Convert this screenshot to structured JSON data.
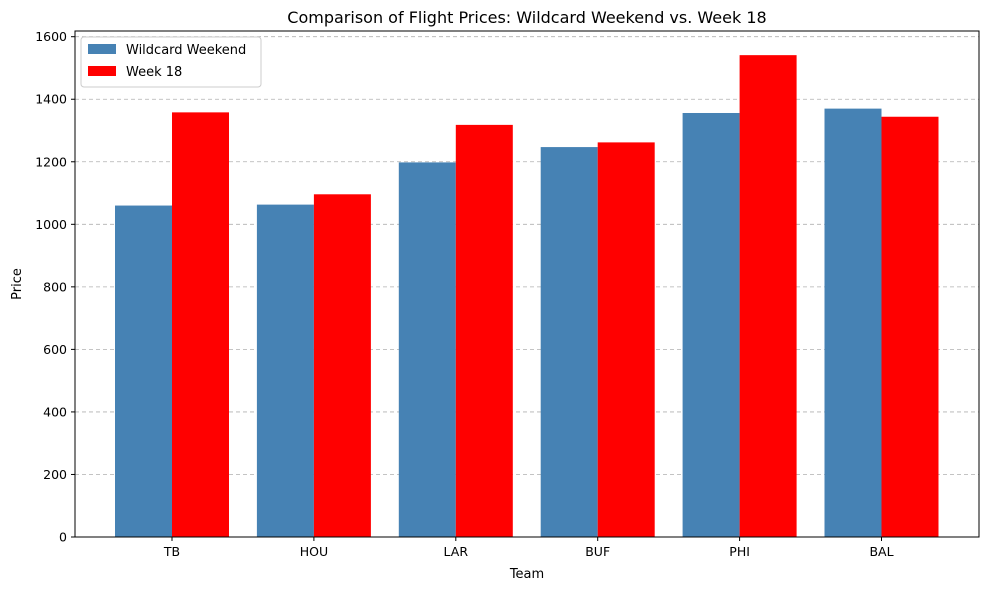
{
  "chart_data": {
    "type": "bar",
    "title": "Comparison of Flight Prices: Wildcard Weekend vs. Week 18",
    "xlabel": "Team",
    "ylabel": "Price",
    "categories": [
      "TB",
      "HOU",
      "LAR",
      "BUF",
      "PHI",
      "BAL"
    ],
    "series": [
      {
        "name": "Wildcard Weekend",
        "color": "#4682b4",
        "values": [
          1060,
          1063,
          1198,
          1247,
          1356,
          1370
        ]
      },
      {
        "name": "Week 18",
        "color": "#ff0000",
        "values": [
          1358,
          1096,
          1318,
          1262,
          1541,
          1344
        ]
      }
    ],
    "ylim": [
      0,
      1600
    ],
    "yticks": [
      0,
      200,
      400,
      600,
      800,
      1000,
      1200,
      1400,
      1600
    ],
    "grid": {
      "y": true,
      "style": "dashed"
    },
    "legend_position": "top-left"
  }
}
